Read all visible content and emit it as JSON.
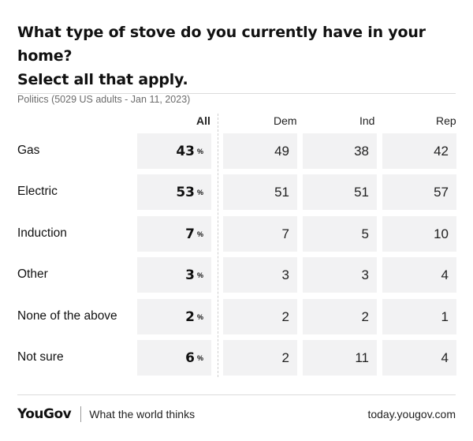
{
  "chart_data": {
    "type": "table",
    "title": "What type of stove do you currently have in your home? Select all that apply.",
    "title_line1": "What type of stove do you currently have in your home?",
    "title_line2": "Select all that apply.",
    "subtitle": "Politics (5029 US adults - Jan 11, 2023)",
    "columns": [
      "All",
      "Dem",
      "Ind",
      "Rep"
    ],
    "unit": "%",
    "rows": [
      {
        "label": "Gas",
        "all": 43,
        "dem": 49,
        "ind": 38,
        "rep": 42
      },
      {
        "label": "Electric",
        "all": 53,
        "dem": 51,
        "ind": 51,
        "rep": 57
      },
      {
        "label": "Induction",
        "all": 7,
        "dem": 7,
        "ind": 5,
        "rep": 10
      },
      {
        "label": "Other",
        "all": 3,
        "dem": 3,
        "ind": 3,
        "rep": 4
      },
      {
        "label": "None of the above",
        "all": 2,
        "dem": 2,
        "ind": 2,
        "rep": 1
      },
      {
        "label": "Not sure",
        "all": 6,
        "dem": 2,
        "ind": 11,
        "rep": 4
      }
    ]
  },
  "footer": {
    "logo": "YouGov",
    "tagline": "What the world thinks",
    "site": "today.yougov.com"
  },
  "colors": {
    "cell_bg": "#f2f2f3",
    "text": "#111111",
    "subtitle": "#6b6b6b"
  }
}
